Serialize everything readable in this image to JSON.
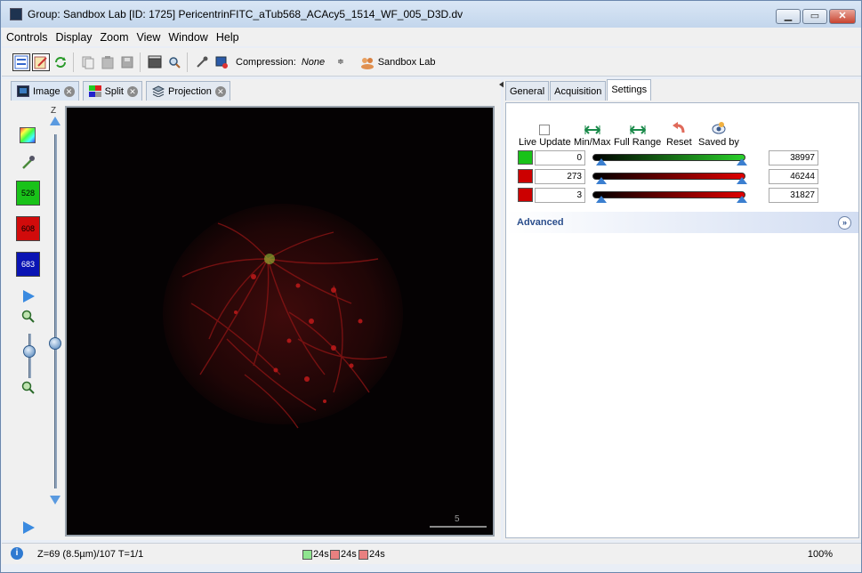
{
  "window": {
    "title": "Group: Sandbox Lab [ID: 1725] PericentrinFITC_aTub568_ACAcy5_1514_WF_005_D3D.dv",
    "minimize": "▁",
    "maximize": "▭",
    "close": "✕"
  },
  "menu": [
    "Controls",
    "Display",
    "Zoom",
    "View",
    "Window",
    "Help"
  ],
  "toolbar": {
    "compression_label": "Compression:",
    "compression_value": "None",
    "compression_spin": "≑",
    "group_label": "Sandbox Lab"
  },
  "viewer_tabs": [
    {
      "label": "Image",
      "close": "✕"
    },
    {
      "label": "Split",
      "close": "✕"
    },
    {
      "label": "Projection",
      "close": "✕"
    }
  ],
  "tools": {
    "z_label": "Z",
    "channels": [
      {
        "label": "528",
        "color": "#19c219"
      },
      {
        "label": "608",
        "color": "#d10b0b"
      },
      {
        "label": "683",
        "color": "#0a14b4"
      }
    ],
    "z_position_fraction": 0.59,
    "zoom_position_fraction": 0.4
  },
  "image": {
    "scale_label": "5"
  },
  "settings_tabs": [
    "General",
    "Acquisition",
    "Settings"
  ],
  "settings": {
    "controls": [
      {
        "label": "Live Update"
      },
      {
        "label": "Min/Max"
      },
      {
        "label": "Full Range"
      },
      {
        "label": "Reset"
      },
      {
        "label": "Saved by"
      }
    ],
    "channels": [
      {
        "color": "#19c219",
        "min": "0",
        "max": "38997",
        "bar_color": "#2ad12a"
      },
      {
        "color": "#cc0000",
        "min": "273",
        "max": "46244",
        "bar_color": "#e00000"
      },
      {
        "color": "#cc0000",
        "min": "3",
        "max": "31827",
        "bar_color": "#e00000"
      }
    ],
    "advanced_label": "Advanced",
    "advanced_chevron": "»"
  },
  "status": {
    "info_icon": "i",
    "position": "Z=69 (8.5µm)/107 T=1/1",
    "channel_times": [
      {
        "label": "24s",
        "color": "#8fe58f"
      },
      {
        "label": "24s",
        "color": "#e88080"
      },
      {
        "label": "24s",
        "color": "#e88080"
      }
    ],
    "zoom": "100%"
  }
}
